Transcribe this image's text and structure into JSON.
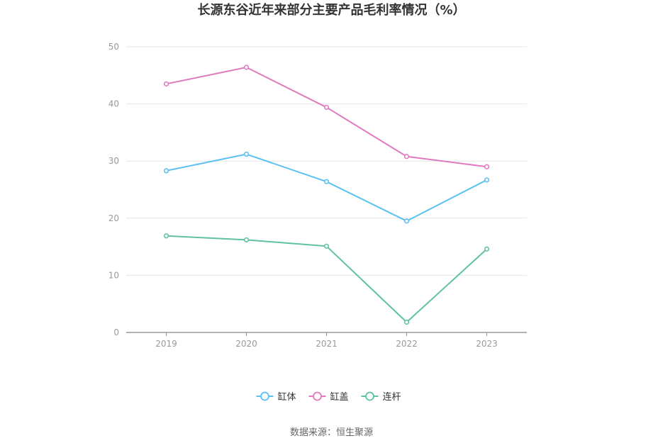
{
  "chart_data": {
    "type": "line",
    "title": "长源东谷近年来部分主要产品毛利率情况（%）",
    "categories": [
      "2019",
      "2020",
      "2021",
      "2022",
      "2023"
    ],
    "y_ticks": [
      "0",
      "10",
      "20",
      "30",
      "40",
      "50"
    ],
    "ylim": [
      0,
      50
    ],
    "grid": true,
    "legend_position": "bottom-center",
    "series": [
      {
        "name": "缸体",
        "color": "#5bc0f2",
        "values": [
          28.3,
          31.2,
          26.4,
          19.5,
          26.7
        ]
      },
      {
        "name": "缸盖",
        "color": "#e07ac0",
        "values": [
          43.5,
          46.4,
          39.4,
          30.8,
          29.0
        ]
      },
      {
        "name": "连杆",
        "color": "#5fc2a2",
        "values": [
          16.9,
          16.2,
          15.1,
          1.8,
          14.6
        ]
      }
    ]
  },
  "source_note": "数据来源：恒生聚源"
}
